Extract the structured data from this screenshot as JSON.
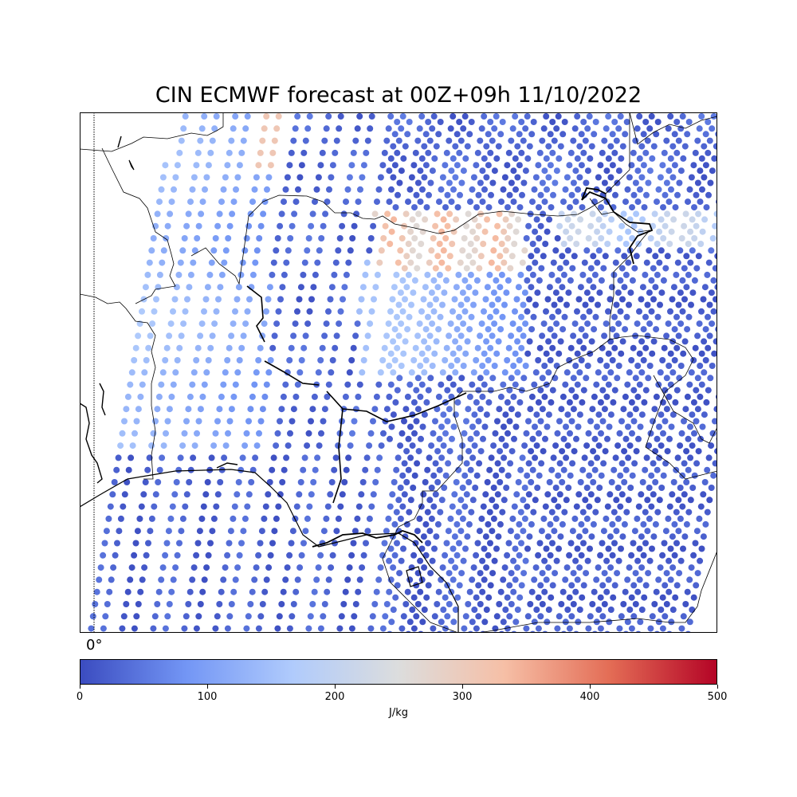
{
  "title": "CIN ECMWF forecast at 00Z+09h 11/10/2022",
  "meridian_label": "0°",
  "colorbar": {
    "units": "J/kg",
    "min": 0,
    "max": 500,
    "ticks": [
      "0",
      "100",
      "200",
      "300",
      "400",
      "500"
    ],
    "colormap": "coolwarm",
    "stops": [
      "#3b4cc0",
      "#7396f5",
      "#b0cbfc",
      "#dcdddd",
      "#f6bfa6",
      "#e36c55",
      "#b40426"
    ]
  },
  "colors": {
    "coastline": "#000000",
    "border": "#000000",
    "background": "#ffffff"
  }
}
